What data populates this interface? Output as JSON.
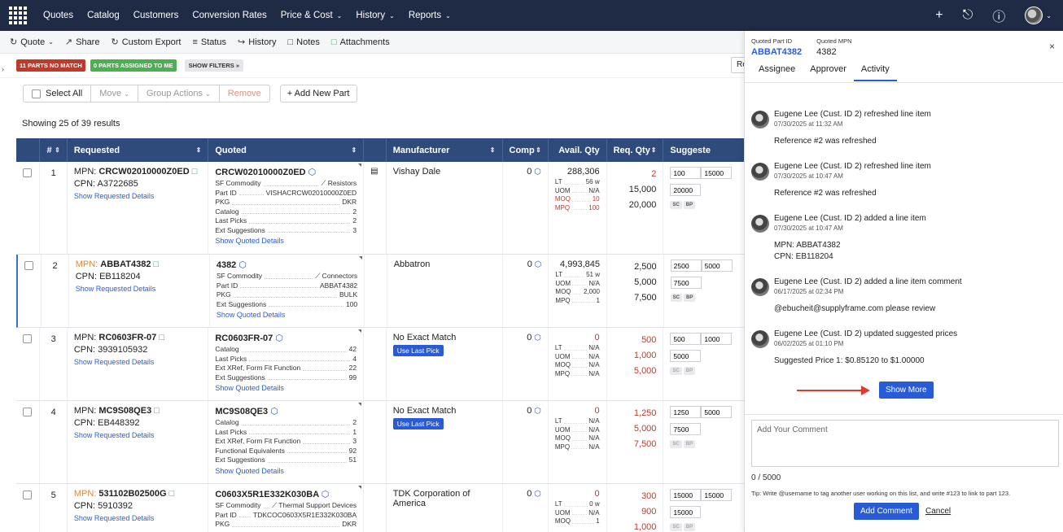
{
  "nav": {
    "items": [
      "Quotes",
      "Catalog",
      "Customers",
      "Conversion Rates",
      "Price & Cost",
      "History",
      "Reports"
    ],
    "dropdowns": [
      false,
      false,
      false,
      false,
      true,
      true,
      true
    ]
  },
  "toolbar": {
    "quote": "Quote",
    "share": "Share",
    "custom_export": "Custom Export",
    "status": "Status",
    "history": "History",
    "notes": "Notes",
    "attachments": "Attachments"
  },
  "filters": {
    "no_match": "11 PARTS NO MATCH",
    "assigned": "0 PARTS ASSIGNED TO ME",
    "show_filters": "SHOW FILTERS »",
    "re_label": "Re"
  },
  "actions": {
    "select_all": "Select All",
    "move": "Move",
    "group_actions": "Group Actions",
    "remove": "Remove",
    "add_new_part": "+ Add New Part"
  },
  "showing": "Showing 25 of 39 results",
  "table": {
    "headers": {
      "num": "#",
      "requested": "Requested",
      "quoted": "Quoted",
      "manufacturer": "Manufacturer",
      "comp": "Comp",
      "avail": "Avail. Qty",
      "req_qty": "Req. Qty",
      "suggested": "Suggeste"
    },
    "rows": [
      {
        "num": "1",
        "mpn_label": "MPN: ",
        "mpn": "CRCW02010000Z0ED",
        "cpn": "CPN: A3722685",
        "show_req": "Show Requested Details",
        "q_mpn": "CRCW02010000Z0ED",
        "q_lines": [
          [
            "SF Commodity",
            "⟋ Resistors"
          ],
          [
            "Part ID",
            "VISHACRCW02010000Z0ED"
          ],
          [
            "PKG",
            "DKR"
          ],
          [
            "Catalog",
            "2"
          ],
          [
            "Last Picks",
            "2"
          ],
          [
            "Ext Suggestions",
            "3"
          ]
        ],
        "show_quoted": "Show Quoted Details",
        "manufacturer": "Vishay Dale",
        "comp": "0",
        "avail": "288,306",
        "av_lines": [
          [
            "LT",
            "56 w",
            ""
          ],
          [
            "UOM",
            "N/A",
            ""
          ],
          [
            "MOQ",
            "10",
            "red"
          ],
          [
            "MPQ",
            "100",
            "red"
          ]
        ],
        "req_qty": [
          [
            "2",
            "red"
          ],
          [
            "15,000",
            ""
          ],
          [
            "20,000",
            ""
          ]
        ],
        "sug": [
          "100",
          "15000",
          "20000"
        ]
      },
      {
        "num": "2",
        "mpn_label": "MPN: ",
        "mpn": "ABBAT4382",
        "cpn": "CPN: EB118204",
        "show_req": "Show Requested Details",
        "q_mpn": "4382",
        "q_lines": [
          [
            "SF Commodity",
            "⟋ Connectors"
          ],
          [
            "Part ID",
            "ABBAT4382"
          ],
          [
            "PKG",
            "BULK"
          ],
          [
            "Ext Suggestions",
            "100"
          ]
        ],
        "show_quoted": "Show Quoted Details",
        "manufacturer": "Abbatron",
        "comp": "0",
        "avail": "4,993,845",
        "av_lines": [
          [
            "LT",
            "51 w",
            ""
          ],
          [
            "UOM",
            "N/A",
            ""
          ],
          [
            "MOQ",
            "2,000",
            ""
          ],
          [
            "MPQ",
            "1",
            ""
          ]
        ],
        "req_qty": [
          [
            "2,500",
            ""
          ],
          [
            "5,000",
            ""
          ],
          [
            "7,500",
            ""
          ]
        ],
        "sug": [
          "2500",
          "5000",
          "7500"
        ]
      },
      {
        "num": "3",
        "mpn_label": "MPN: ",
        "mpn": "RC0603FR-07",
        "cpn": "CPN: 3939105932",
        "show_req": "Show Requested Details",
        "q_mpn": "RC0603FR-07",
        "q_lines": [
          [
            "Catalog",
            "42"
          ],
          [
            "Last Picks",
            "4"
          ],
          [
            "Ext XRef, Form Fit Function",
            "22"
          ],
          [
            "Ext Suggestions",
            "99"
          ]
        ],
        "show_quoted": "Show Quoted Details",
        "manufacturer": "No Exact Match",
        "use_last": "Use Last Pick",
        "comp": "0",
        "avail": "0",
        "av_lines": [
          [
            "LT",
            "N/A",
            ""
          ],
          [
            "UOM",
            "N/A",
            ""
          ],
          [
            "MOQ",
            "N/A",
            ""
          ],
          [
            "MPQ",
            "N/A",
            ""
          ]
        ],
        "req_qty": [
          [
            "500",
            "red"
          ],
          [
            "1,000",
            "red"
          ],
          [
            "5,000",
            "red"
          ]
        ],
        "sug": [
          "500",
          "1000",
          "5000"
        ]
      },
      {
        "num": "4",
        "mpn_label": "MPN: ",
        "mpn": "MC9S08QE3",
        "cpn": "CPN: EB448392",
        "show_req": "Show Requested Details",
        "q_mpn": "MC9S08QE3",
        "q_lines": [
          [
            "Catalog",
            "2"
          ],
          [
            "Last Picks",
            "1"
          ],
          [
            "Ext XRef, Form Fit Function",
            "3"
          ],
          [
            "Functional Equivalents",
            "92"
          ],
          [
            "Ext Suggestions",
            "51"
          ]
        ],
        "show_quoted": "Show Quoted Details",
        "manufacturer": "No Exact Match",
        "use_last": "Use Last Pick",
        "comp": "0",
        "avail": "0",
        "av_lines": [
          [
            "LT",
            "N/A",
            ""
          ],
          [
            "UOM",
            "N/A",
            ""
          ],
          [
            "MOQ",
            "N/A",
            ""
          ],
          [
            "MPQ",
            "N/A",
            ""
          ]
        ],
        "req_qty": [
          [
            "1,250",
            "red"
          ],
          [
            "5,000",
            "red"
          ],
          [
            "7,500",
            "red"
          ]
        ],
        "sug": [
          "1250",
          "5000",
          "7500"
        ]
      },
      {
        "num": "5",
        "mpn_label": "MPN: ",
        "mpn": "531102B02500G",
        "cpn": "CPN: 5910392",
        "show_req": "Show Requested Details",
        "q_mpn": "C0603X5R1E332K030BA",
        "q_lines": [
          [
            "SF Commodity",
            "⟋ Thermal Support Devices"
          ],
          [
            "Part ID",
            "TDKCOC0603X5R1E332K030BA"
          ],
          [
            "PKG",
            "DKR"
          ]
        ],
        "show_quoted": "",
        "manufacturer": "TDK Corporation of America",
        "comp": "0",
        "avail": "0",
        "av_lines": [
          [
            "LT",
            "0 w",
            ""
          ],
          [
            "UOM",
            "N/A",
            ""
          ],
          [
            "MOQ",
            "1",
            ""
          ]
        ],
        "req_qty": [
          [
            "300",
            "red"
          ],
          [
            "900",
            "red"
          ],
          [
            "1,000",
            "red"
          ]
        ],
        "sug": [
          "15000",
          "15000",
          "15000"
        ]
      }
    ]
  },
  "panel": {
    "part_id_label": "Quoted Part ID",
    "part_id": "ABBAT4382",
    "mpn_label": "Quoted MPN",
    "mpn": "4382",
    "tabs": [
      "Assignee",
      "Approver",
      "Activity"
    ],
    "activities": [
      {
        "title": "Eugene Lee (Cust. ID 2) refreshed line item",
        "time": "07/30/2025 at 11:32 AM",
        "body": "Reference #2 was refreshed"
      },
      {
        "title": "Eugene Lee (Cust. ID 2) refreshed line item",
        "time": "07/30/2025 at 10:47 AM",
        "body": "Reference #2 was refreshed"
      },
      {
        "title": "Eugene Lee (Cust. ID 2) added a line item",
        "time": "07/30/2025 at 10:47 AM",
        "body": "MPN: ABBAT4382",
        "body2": "CPN: EB118204"
      },
      {
        "title": "Eugene Lee (Cust. ID 2) added a line item comment",
        "time": "06/17/2025 at 02:34 PM",
        "body": "@ebucheit@supplyframe.com please review"
      },
      {
        "title": "Eugene Lee (Cust. ID 2) updated suggested prices",
        "time": "06/02/2025 at 01:10 PM",
        "body": "Suggested Price 1: $0.85120 to $1.00000"
      }
    ],
    "show_more": "Show More",
    "comment_placeholder": "Add Your Comment",
    "counter": "0 / 5000",
    "tip": "Tip: Write @username to tag another user working on this list, and write #123 to link to part 123.",
    "add_comment": "Add Comment",
    "cancel": "Cancel"
  }
}
